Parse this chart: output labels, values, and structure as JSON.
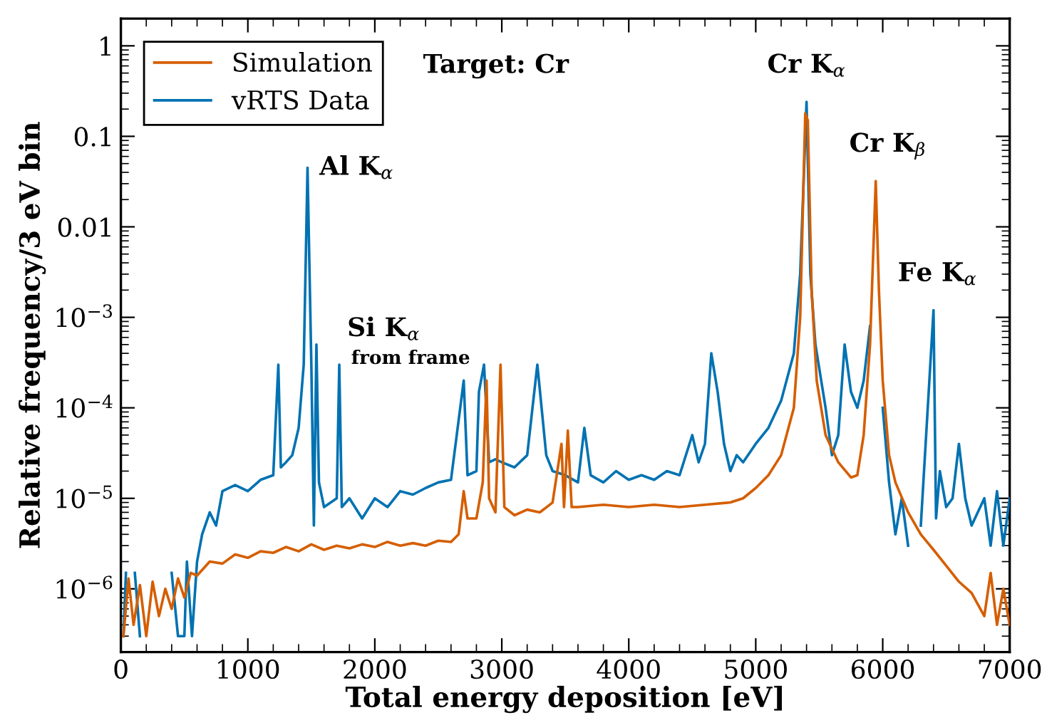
{
  "chart_data": {
    "type": "line",
    "xlabel": "Total energy deposition [eV]",
    "ylabel": "Relative frequency/3 eV bin",
    "log": "y",
    "grid": false,
    "legend": "top left",
    "marker": "none",
    "line_style": "solid",
    "xlim": [
      0,
      7000
    ],
    "xticks": [
      0,
      1000,
      2000,
      3000,
      4000,
      5000,
      6000,
      7000
    ],
    "ylim": [
      2e-07,
      2
    ],
    "yticks": [
      1,
      0.1,
      0.01,
      {
        "value": 0.001,
        "label": "10$^{−3}$"
      },
      {
        "value": 0.0001,
        "label": "10$^{−4}$"
      },
      {
        "value": 1e-05,
        "label": "10$^{−5}$"
      },
      {
        "value": 1e-06,
        "label": "10$^{−6}$"
      }
    ],
    "annotations": [
      "Target: Cr",
      {
        "text": "Al K$_{α}$",
        "x": 1470,
        "y": 0.045
      },
      {
        "text": "Si K$_{α}$",
        "x": 1720,
        "y": 0.0003
      },
      {
        "text": "from frame",
        "x": 1720,
        "y": 0.0003
      },
      {
        "text": "Cr K$_{α}$",
        "x": 5400,
        "y": 0.24
      },
      {
        "text": "Cr K$_{β}$",
        "x": 5945,
        "y": 0.03
      },
      {
        "text": "Fe K$_{α}$",
        "x": 6400,
        "y": 0.0012
      }
    ],
    "series": [
      {
        "name": "Simulation",
        "color": "#d55e00",
        "x": [
          20,
          60,
          100,
          150,
          200,
          250,
          300,
          350,
          400,
          450,
          500,
          550,
          600,
          700,
          800,
          900,
          1000,
          1100,
          1200,
          1300,
          1400,
          1500,
          1600,
          1700,
          1800,
          1900,
          2000,
          2100,
          2200,
          2300,
          2400,
          2500,
          2600,
          2660,
          2700,
          2730,
          2800,
          2850,
          2880,
          2900,
          2950,
          2990,
          3020,
          3100,
          3200,
          3300,
          3400,
          3470,
          3490,
          3520,
          3550,
          3600,
          3800,
          4000,
          4200,
          4400,
          4600,
          4800,
          4900,
          5000,
          5100,
          5200,
          5300,
          5350,
          5390,
          5410,
          5440,
          5480,
          5550,
          5650,
          5750,
          5800,
          5850,
          5900,
          5945,
          5970,
          6000,
          6050,
          6100,
          6200,
          6300,
          6400,
          6500,
          6600,
          6700,
          6800,
          6850,
          6900,
          6950,
          7000
        ],
        "values": [
          3e-07,
          1.3e-06,
          4e-07,
          1.1e-06,
          3e-07,
          1.2e-06,
          5e-07,
          1e-06,
          6e-07,
          1.3e-06,
          8e-07,
          1.5e-06,
          1.4e-06,
          2e-06,
          1.9e-06,
          2.4e-06,
          2.2e-06,
          2.6e-06,
          2.5e-06,
          2.9e-06,
          2.6e-06,
          3.1e-06,
          2.7e-06,
          3e-06,
          2.8e-06,
          3.1e-06,
          2.9e-06,
          3.3e-06,
          3e-06,
          3.2e-06,
          3e-06,
          3.4e-06,
          3.3e-06,
          4e-06,
          1.2e-05,
          6e-06,
          6e-06,
          1.5e-05,
          0.0002,
          1e-05,
          7e-06,
          0.0003,
          8e-06,
          6.5e-06,
          7.5e-06,
          7e-06,
          9e-06,
          4e-05,
          8e-06,
          5.6e-05,
          8e-06,
          8e-06,
          8.5e-06,
          8e-06,
          8.5e-06,
          8e-06,
          8.5e-06,
          9e-06,
          1e-05,
          1.3e-05,
          1.8e-05,
          3e-05,
          0.0001,
          0.001,
          0.18,
          0.15,
          0.002,
          0.0002,
          5e-05,
          2.5e-05,
          1.7e-05,
          1.8e-05,
          5e-05,
          0.0005,
          0.032,
          0.002,
          0.0002,
          3e-05,
          1.5e-05,
          7e-06,
          4e-06,
          2.7e-06,
          1.8e-06,
          1.2e-06,
          9e-07,
          5e-07,
          1.5e-06,
          4e-07,
          1e-06,
          4e-07
        ]
      },
      {
        "name": "vRTS Data",
        "color": "#0072b2",
        "x": [
          20,
          40,
          70,
          110,
          150,
          300,
          400,
          450,
          500,
          520,
          560,
          600,
          640,
          700,
          750,
          800,
          900,
          1000,
          1100,
          1200,
          1240,
          1260,
          1300,
          1350,
          1400,
          1440,
          1470,
          1500,
          1520,
          1540,
          1560,
          1600,
          1700,
          1720,
          1740,
          1800,
          1900,
          2000,
          2100,
          2200,
          2300,
          2400,
          2500,
          2600,
          2700,
          2730,
          2800,
          2820,
          2860,
          2900,
          2950,
          3000,
          3100,
          3200,
          3280,
          3350,
          3400,
          3500,
          3600,
          3650,
          3700,
          3800,
          3900,
          4000,
          4100,
          4200,
          4300,
          4400,
          4500,
          4550,
          4600,
          4650,
          4700,
          4750,
          4800,
          4850,
          4900,
          5000,
          5100,
          5200,
          5300,
          5350,
          5400,
          5430,
          5470,
          5550,
          5600,
          5650,
          5700,
          5750,
          5800,
          5850,
          5900,
          5945,
          5980,
          6000,
          6050,
          6100,
          6150,
          6200,
          6250,
          6300,
          6400,
          6420,
          6450,
          6500,
          6550,
          6600,
          6650,
          6700,
          6800,
          6850,
          6900,
          6950,
          7000
        ],
        "values": [
          3e-07,
          1.5e-06,
          null,
          1.5e-06,
          3e-07,
          null,
          1.5e-06,
          3e-07,
          3e-07,
          2e-06,
          3e-07,
          2e-06,
          4e-06,
          7e-06,
          5e-06,
          1.2e-05,
          1.4e-05,
          1.2e-05,
          1.6e-05,
          1.8e-05,
          0.0003,
          2.2e-05,
          2.5e-05,
          3e-05,
          6e-05,
          0.0003,
          0.045,
          0.0003,
          5e-06,
          0.0005,
          1.5e-05,
          8e-06,
          1e-05,
          0.0003,
          8e-06,
          1e-05,
          6e-06,
          1e-05,
          8e-06,
          1.2e-05,
          1.1e-05,
          1.3e-05,
          1.5e-05,
          1.6e-05,
          0.0002,
          1.8e-05,
          2e-05,
          0.00015,
          0.0003,
          2.5e-05,
          2.7e-05,
          2.5e-05,
          2.2e-05,
          3e-05,
          0.0003,
          3e-05,
          2e-05,
          1.8e-05,
          1.5e-05,
          6e-05,
          1.8e-05,
          1.5e-05,
          2e-05,
          1.6e-05,
          1.8e-05,
          1.6e-05,
          2e-05,
          1.8e-05,
          5e-05,
          2.5e-05,
          4e-05,
          0.0004,
          0.00015,
          4e-05,
          2e-05,
          3e-05,
          2.5e-05,
          4e-05,
          6e-05,
          0.00012,
          0.0004,
          0.003,
          0.24,
          0.003,
          0.0005,
          0.0001,
          3e-05,
          5e-05,
          0.0005,
          0.00015,
          0.0001,
          0.0002,
          0.0008,
          null,
          null,
          0.0001,
          1.5e-05,
          4e-06,
          1e-05,
          3e-06,
          null,
          5e-06,
          0.0012,
          6e-06,
          2e-05,
          8e-06,
          1e-05,
          4e-05,
          1e-05,
          5e-06,
          1e-05,
          3e-06,
          1.2e-05,
          3e-06,
          1e-05
        ]
      }
    ]
  }
}
